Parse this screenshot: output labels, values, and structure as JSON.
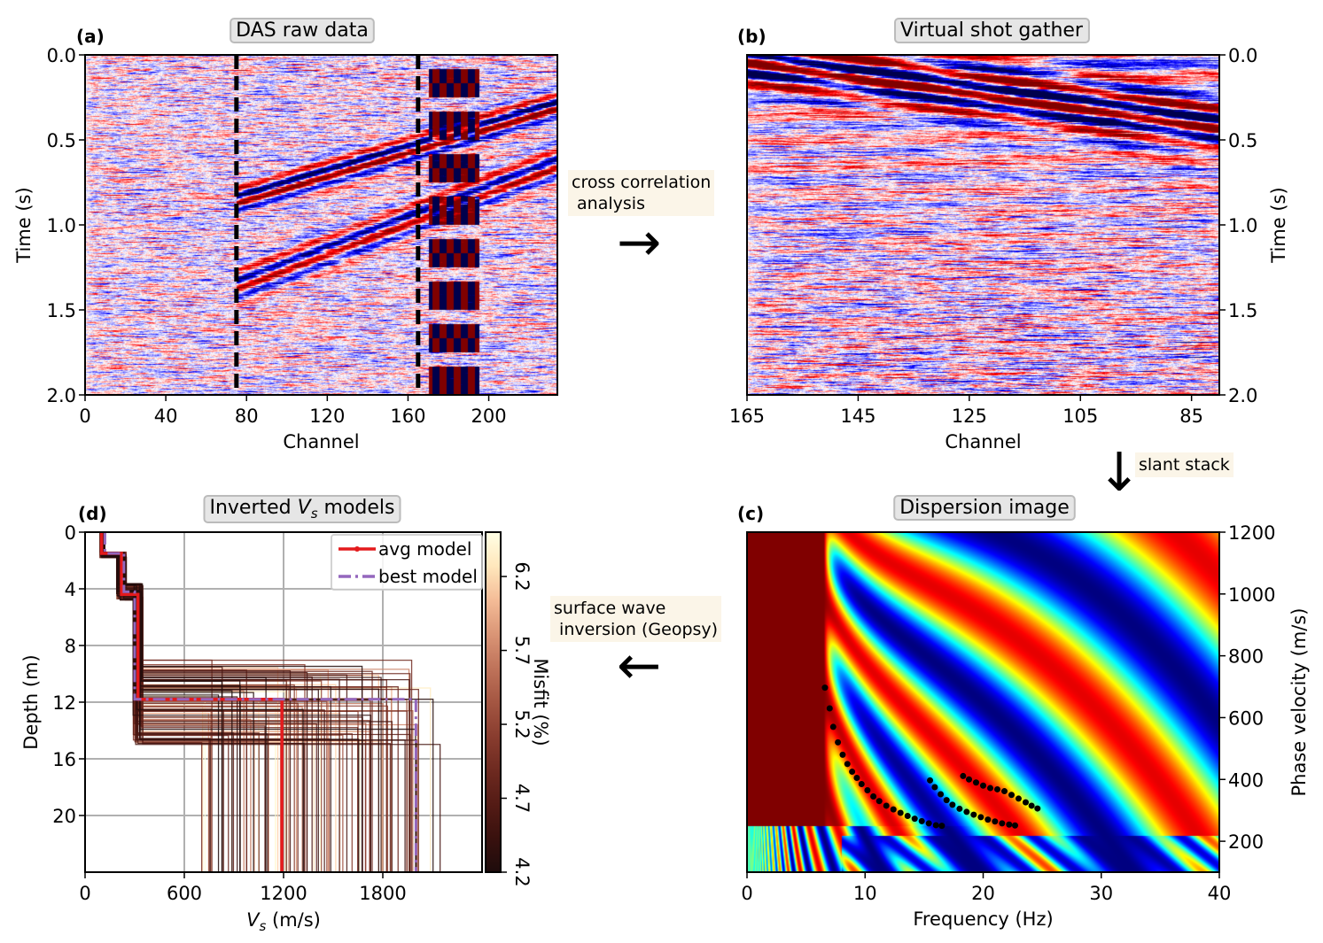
{
  "chart_data": [
    {
      "id": "a",
      "type": "heatmap",
      "panel_label": "(a)",
      "title": "DAS raw data",
      "xlabel": "Channel",
      "ylabel": "Time (s)",
      "xlim": [
        0,
        234
      ],
      "ylim": [
        2.0,
        0.0
      ],
      "xticks": [
        "0",
        "40",
        "80",
        "120",
        "160",
        "200"
      ],
      "xtick_values": [
        0,
        40,
        80,
        120,
        160,
        200
      ],
      "yticks": [
        "0.0",
        "0.5",
        "1.0",
        "1.5",
        "2.0"
      ],
      "ytick_values": [
        0,
        0.5,
        1.0,
        1.5,
        2.0
      ],
      "colormap": "seismic",
      "dashed_lines_channel": [
        75,
        165
      ]
    },
    {
      "id": "b",
      "type": "heatmap",
      "panel_label": "(b)",
      "title": "Virtual shot gather",
      "xlabel": "Channel",
      "ylabel": "Time (s)",
      "xlim": [
        165,
        80
      ],
      "ylim": [
        2.0,
        0.0
      ],
      "xticks": [
        "165",
        "145",
        "125",
        "105",
        "85"
      ],
      "xtick_values": [
        165,
        145,
        125,
        105,
        85
      ],
      "yticks": [
        "0.0",
        "0.5",
        "1.0",
        "1.5",
        "2.0"
      ],
      "ytick_values": [
        0,
        0.5,
        1.0,
        1.5,
        2.0
      ],
      "yaxis_side": "right",
      "colormap": "seismic"
    },
    {
      "id": "c",
      "type": "heatmap",
      "panel_label": "(c)",
      "title": "Dispersion image",
      "xlabel": "Frequency (Hz)",
      "ylabel": "Phase velocity (m/s)",
      "xlim": [
        0,
        40
      ],
      "ylim": [
        100,
        1200
      ],
      "xticks": [
        "0",
        "10",
        "20",
        "30",
        "40"
      ],
      "xtick_values": [
        0,
        10,
        20,
        30,
        40
      ],
      "yticks": [
        "200",
        "400",
        "600",
        "800",
        "1000",
        "1200"
      ],
      "ytick_values": [
        200,
        400,
        600,
        800,
        1000,
        1200
      ],
      "yaxis_side": "right",
      "colormap": "jet",
      "picks": [
        {
          "f": [
            6.6,
            7.0,
            7.3,
            7.7,
            8.1,
            8.5,
            8.9,
            9.3,
            9.7,
            10.2,
            10.7,
            11.2,
            11.8,
            12.4,
            13.0,
            13.6,
            14.2,
            14.8,
            15.4,
            16.0,
            16.5
          ],
          "v": [
            697,
            630,
            570,
            520,
            480,
            450,
            425,
            405,
            385,
            365,
            345,
            330,
            315,
            303,
            292,
            282,
            273,
            265,
            258,
            252,
            250
          ]
        },
        {
          "f": [
            15.5,
            15.9,
            16.4,
            16.9,
            17.4,
            18.0,
            18.6,
            19.2,
            19.8,
            20.4,
            21.0,
            21.6,
            22.2,
            22.7
          ],
          "v": [
            397,
            375,
            352,
            333,
            318,
            305,
            295,
            286,
            278,
            270,
            264,
            258,
            254,
            251
          ]
        },
        {
          "f": [
            18.3,
            18.8,
            19.4,
            20.0,
            20.6,
            21.2,
            21.8,
            22.4,
            23.0,
            23.6,
            24.1,
            24.6
          ],
          "v": [
            411,
            400,
            390,
            380,
            372,
            368,
            362,
            350,
            338,
            326,
            315,
            306
          ]
        }
      ]
    },
    {
      "id": "d",
      "type": "line",
      "panel_label": "(d)",
      "title_prefix": "Inverted ",
      "title_var": "V",
      "title_sub": "s",
      "title_suffix": " models",
      "xlabel_var": "V",
      "xlabel_sub": "s",
      "xlabel_suffix": " (m/s)",
      "ylabel": "Depth (m)",
      "xlim": [
        0,
        2400
      ],
      "ylim": [
        24,
        0
      ],
      "grid": true,
      "xticks": [
        "0",
        "600",
        "1200",
        "1800"
      ],
      "xtick_values": [
        0,
        600,
        1200,
        1800
      ],
      "yticks": [
        "0",
        "4",
        "8",
        "12",
        "16",
        "20"
      ],
      "ytick_values": [
        0,
        4,
        8,
        12,
        16,
        20
      ],
      "legend_placement": "top-right",
      "series": [
        {
          "name": "avg model",
          "color": "#e41a1c",
          "style": "solid",
          "depth_tops": [
            0,
            1.5,
            4.4,
            11.8
          ],
          "vs": [
            100,
            220,
            320,
            1190
          ]
        },
        {
          "name": "best model",
          "color": "#9467bd",
          "style": "dashdot",
          "depth_tops": [
            0,
            1.5,
            4.2,
            11.8
          ],
          "vs": [
            120,
            235,
            300,
            2000
          ]
        }
      ],
      "colorbar": {
        "label": "Misfit (%)",
        "range": [
          4.2,
          6.5
        ],
        "ticks": [
          "4.2",
          "4.7",
          "5.2",
          "5.7",
          "6.2"
        ],
        "tick_values": [
          4.2,
          4.7,
          5.2,
          5.7,
          6.2
        ],
        "colormap": "pink"
      }
    }
  ],
  "annotations": {
    "cross_correlation": "cross correlation\n analysis",
    "slant_stack": "slant stack",
    "inversion": "surface wave\n inversion (Geopsy)"
  },
  "arrows": {
    "right": "→",
    "down": "↓",
    "left": "←"
  },
  "colors": {
    "annotation_bg": "#fbf5e8",
    "title_box_bg": "#e6e6e6"
  }
}
